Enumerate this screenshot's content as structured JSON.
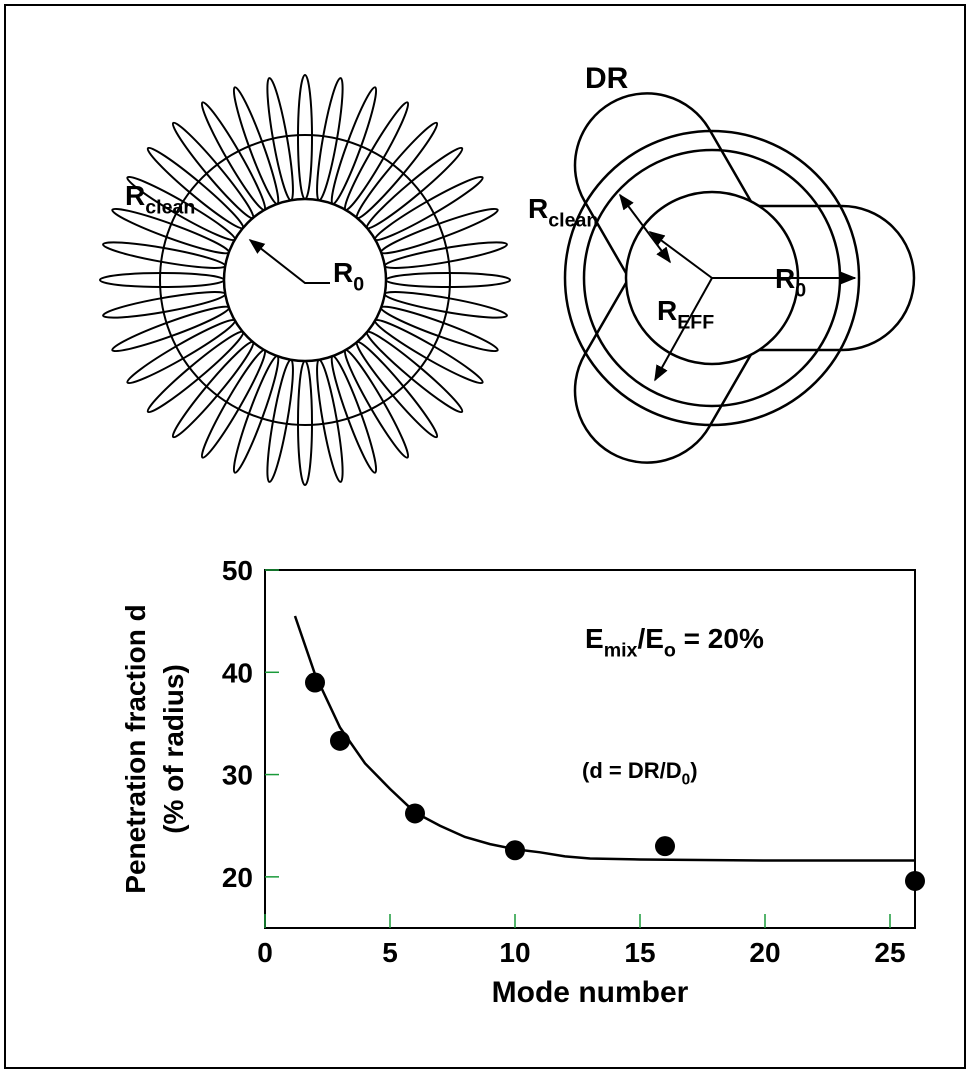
{
  "diagrams": {
    "left": {
      "labels": [
        [
          {
            "text": "R"
          },
          {
            "sub": "clean"
          }
        ],
        [
          {
            "text": "R"
          },
          {
            "sub": "0"
          }
        ]
      ]
    },
    "right": {
      "labels": [
        [
          {
            "text": "DR"
          }
        ],
        [
          {
            "text": "R"
          },
          {
            "sub": "clean"
          }
        ],
        [
          {
            "text": "R"
          },
          {
            "sub": "0"
          }
        ],
        [
          {
            "text": "R"
          },
          {
            "sub": "EFF"
          }
        ]
      ]
    }
  },
  "chart_data": {
    "type": "scatter",
    "xlabel": "Mode number",
    "ylabel": [
      "Penetration fraction d",
      "(% of radius)"
    ],
    "annotations": [
      [
        {
          "text": "E"
        },
        {
          "sub": "mix"
        },
        {
          "text": "/E"
        },
        {
          "sub": "o"
        },
        {
          "text": " = 20%"
        }
      ],
      [
        {
          "text": "(d = DR/D"
        },
        {
          "sub": "0"
        },
        {
          "text": ")"
        }
      ]
    ],
    "xlim": [
      0,
      26
    ],
    "ylim": [
      15,
      50
    ],
    "xticks": [
      0,
      5,
      10,
      15,
      20,
      25
    ],
    "yticks": [
      20,
      30,
      40,
      50
    ],
    "tick_color": "#1a9a3a",
    "series": [
      {
        "type": "line",
        "color": "#000000",
        "x": [
          1.2,
          2,
          3,
          4,
          5,
          6,
          7,
          8,
          9,
          10,
          11,
          12,
          13,
          15,
          20,
          26
        ],
        "values": [
          45.5,
          39.8,
          34.6,
          31.1,
          28.6,
          26.3,
          25.0,
          23.9,
          23.2,
          22.7,
          22.4,
          22.0,
          21.8,
          21.7,
          21.6,
          21.6
        ]
      },
      {
        "type": "scatter",
        "color": "#000000",
        "x": [
          2,
          3,
          6,
          10,
          16,
          26
        ],
        "values": [
          39,
          33.3,
          26.2,
          22.6,
          23,
          19.6
        ]
      }
    ]
  }
}
